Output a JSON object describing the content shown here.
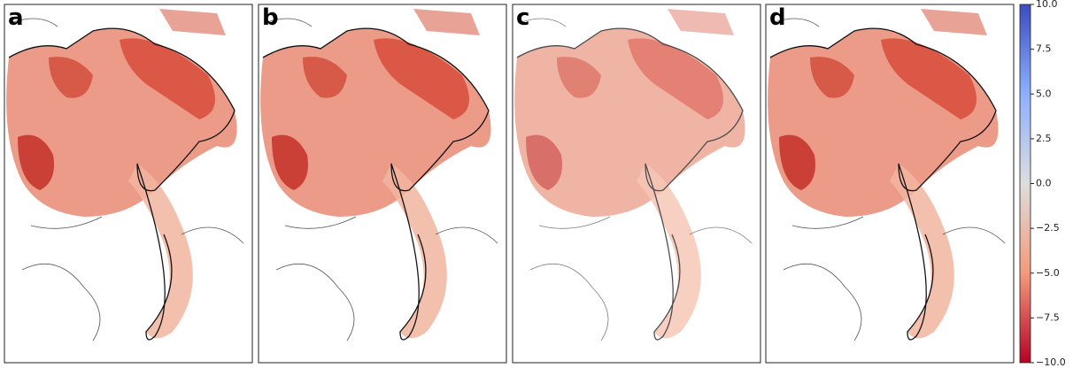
{
  "panels": [
    {
      "label": "a"
    },
    {
      "label": "b"
    },
    {
      "label": "c"
    },
    {
      "label": "d"
    }
  ],
  "colorbar": {
    "lim": [
      -10,
      10
    ],
    "ticks": [
      {
        "value": 10,
        "label": "10.0"
      },
      {
        "value": 7.5,
        "label": "7.5"
      },
      {
        "value": 5,
        "label": "5.0"
      },
      {
        "value": 2.5,
        "label": "2.5"
      },
      {
        "value": 0,
        "label": "0.0"
      },
      {
        "value": -2.5,
        "label": "−2.5"
      },
      {
        "value": -5,
        "label": "−5.0"
      },
      {
        "value": -7.5,
        "label": "−7.5"
      },
      {
        "value": -10,
        "label": "−10.0"
      }
    ]
  }
}
